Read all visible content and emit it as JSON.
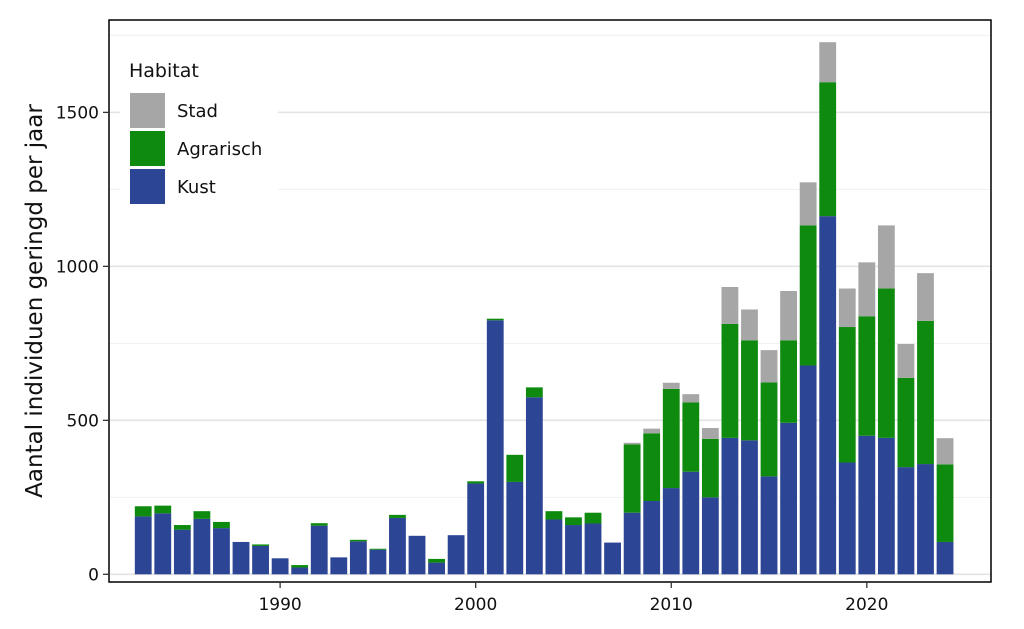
{
  "chart_data": {
    "type": "bar",
    "stacked": true,
    "ylabel": "Aantal individuen geringd per jaar",
    "xlabel": "",
    "xlim": [
      1981.25,
      2026.35
    ],
    "ylim": [
      -25,
      1800
    ],
    "x_ticks": [
      1990,
      2000,
      2010,
      2020
    ],
    "y_ticks": [
      0,
      500,
      1000,
      1500
    ],
    "grid": true,
    "legend": {
      "title": "Habitat",
      "position": "top-left",
      "order": [
        "Stad",
        "Agrarisch",
        "Kust"
      ]
    },
    "x": [
      1983,
      1984,
      1985,
      1986,
      1987,
      1988,
      1989,
      1990,
      1991,
      1992,
      1993,
      1994,
      1995,
      1996,
      1997,
      1998,
      1999,
      2000,
      2001,
      2002,
      2003,
      2004,
      2005,
      2006,
      2007,
      2008,
      2009,
      2010,
      2011,
      2012,
      2013,
      2014,
      2015,
      2016,
      2017,
      2018,
      2019,
      2020,
      2021,
      2022,
      2023,
      2024
    ],
    "series": [
      {
        "name": "Kust",
        "color": "#2d4595",
        "values": [
          188,
          198,
          145,
          180,
          150,
          105,
          92,
          52,
          22,
          158,
          55,
          107,
          80,
          183,
          125,
          38,
          127,
          295,
          825,
          300,
          575,
          178,
          160,
          165,
          103,
          200,
          238,
          280,
          333,
          250,
          443,
          435,
          318,
          492,
          678,
          1163,
          363,
          450,
          443,
          348,
          358,
          105
        ]
      },
      {
        "name": "Agrarisch",
        "color": "#0e8b0e",
        "values": [
          33,
          25,
          15,
          25,
          20,
          0,
          5,
          0,
          8,
          8,
          0,
          5,
          3,
          10,
          0,
          12,
          0,
          7,
          5,
          88,
          32,
          27,
          25,
          35,
          0,
          222,
          220,
          322,
          225,
          190,
          370,
          325,
          305,
          268,
          455,
          435,
          440,
          388,
          485,
          290,
          465,
          252
        ]
      },
      {
        "name": "Stad",
        "color": "#a6a6a6",
        "values": [
          0,
          0,
          0,
          0,
          0,
          0,
          0,
          0,
          0,
          0,
          0,
          0,
          0,
          0,
          0,
          0,
          0,
          0,
          0,
          0,
          0,
          0,
          0,
          0,
          0,
          5,
          15,
          20,
          27,
          35,
          120,
          100,
          105,
          160,
          140,
          130,
          125,
          175,
          205,
          110,
          155,
          85
        ]
      }
    ]
  }
}
